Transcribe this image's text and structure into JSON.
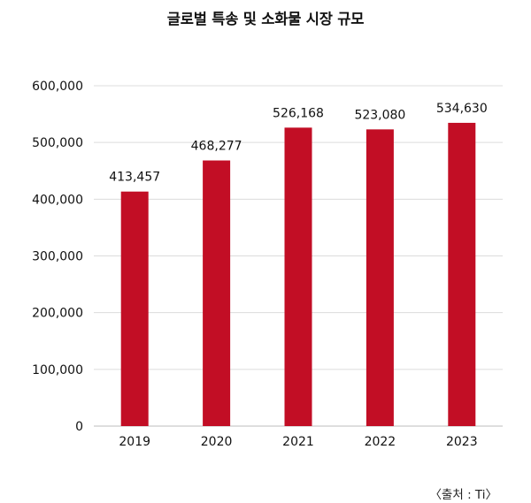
{
  "chart_data": {
    "type": "bar",
    "title": "글로벌 특송 및 소화물 시장 규모",
    "source": "〈출처 : Ti〉",
    "categories": [
      "2019",
      "2020",
      "2021",
      "2022",
      "2023"
    ],
    "values": [
      413457,
      468277,
      526168,
      523080,
      534630
    ],
    "value_labels": [
      "413,457",
      "468,277",
      "526,168",
      "523,080",
      "534,630"
    ],
    "y_ticks": [
      "0",
      "100,000",
      "200,000",
      "300,000",
      "400,000",
      "500,000",
      "600,000"
    ],
    "ylim": [
      0,
      600000
    ],
    "xlabel": "",
    "ylabel": "",
    "grid": true,
    "bar_color": "#c20e25",
    "grid_color": "#dcdcdc"
  }
}
